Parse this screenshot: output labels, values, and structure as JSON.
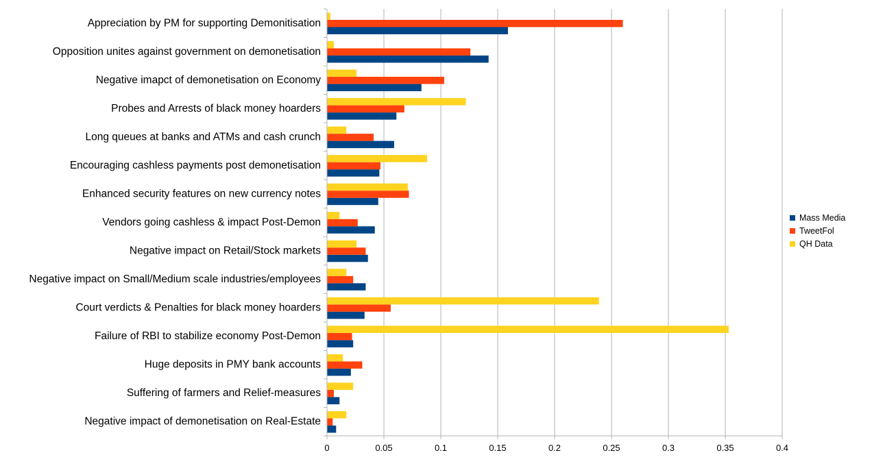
{
  "chart_data": {
    "type": "bar",
    "orientation": "horizontal",
    "title": "",
    "xlabel": "",
    "ylabel": "",
    "xlim": [
      0,
      0.4
    ],
    "x_ticks": [
      "0",
      "0.05",
      "0.1",
      "0.15",
      "0.2",
      "0.25",
      "0.3",
      "0.35",
      "0.4"
    ],
    "grid": "vertical",
    "legend_position": "right",
    "categories": [
      "Appreciation by PM for supporting Demonitisation",
      "Opposition unites against government on demonetisation",
      "Negative imapct of demonetisation on Economy",
      "Probes and Arrests of black money hoarders",
      "Long queues at banks and ATMs and cash crunch",
      "Encouraging cashless payments post demonetisation",
      "Enhanced security features on new currency notes",
      "Vendors going cashless & impact Post-Demon",
      "Negative impact on Retail/Stock markets",
      "Negative impact on Small/Medium scale industries/employees",
      "Court verdicts & Penalties for black money hoarders",
      "Failure of RBI to stabilize economy Post-Demon",
      "Huge deposits in PMY bank accounts",
      "Suffering of farmers and Relief-measures",
      "Negative impact of demonetisation on Real-Estate"
    ],
    "series": [
      {
        "name": "Mass Media",
        "color": "#004586",
        "values": [
          0.159,
          0.142,
          0.083,
          0.061,
          0.059,
          0.046,
          0.045,
          0.042,
          0.036,
          0.034,
          0.033,
          0.023,
          0.021,
          0.011,
          0.008
        ]
      },
      {
        "name": "TweetFol",
        "color": "#ff420e",
        "values": [
          0.26,
          0.126,
          0.103,
          0.068,
          0.041,
          0.047,
          0.072,
          0.027,
          0.034,
          0.023,
          0.056,
          0.022,
          0.031,
          0.006,
          0.005
        ]
      },
      {
        "name": "QH Data",
        "color": "#ffd320",
        "values": [
          0.003,
          0.006,
          0.026,
          0.122,
          0.017,
          0.088,
          0.071,
          0.011,
          0.026,
          0.017,
          0.239,
          0.353,
          0.014,
          0.023,
          0.017
        ]
      }
    ]
  }
}
